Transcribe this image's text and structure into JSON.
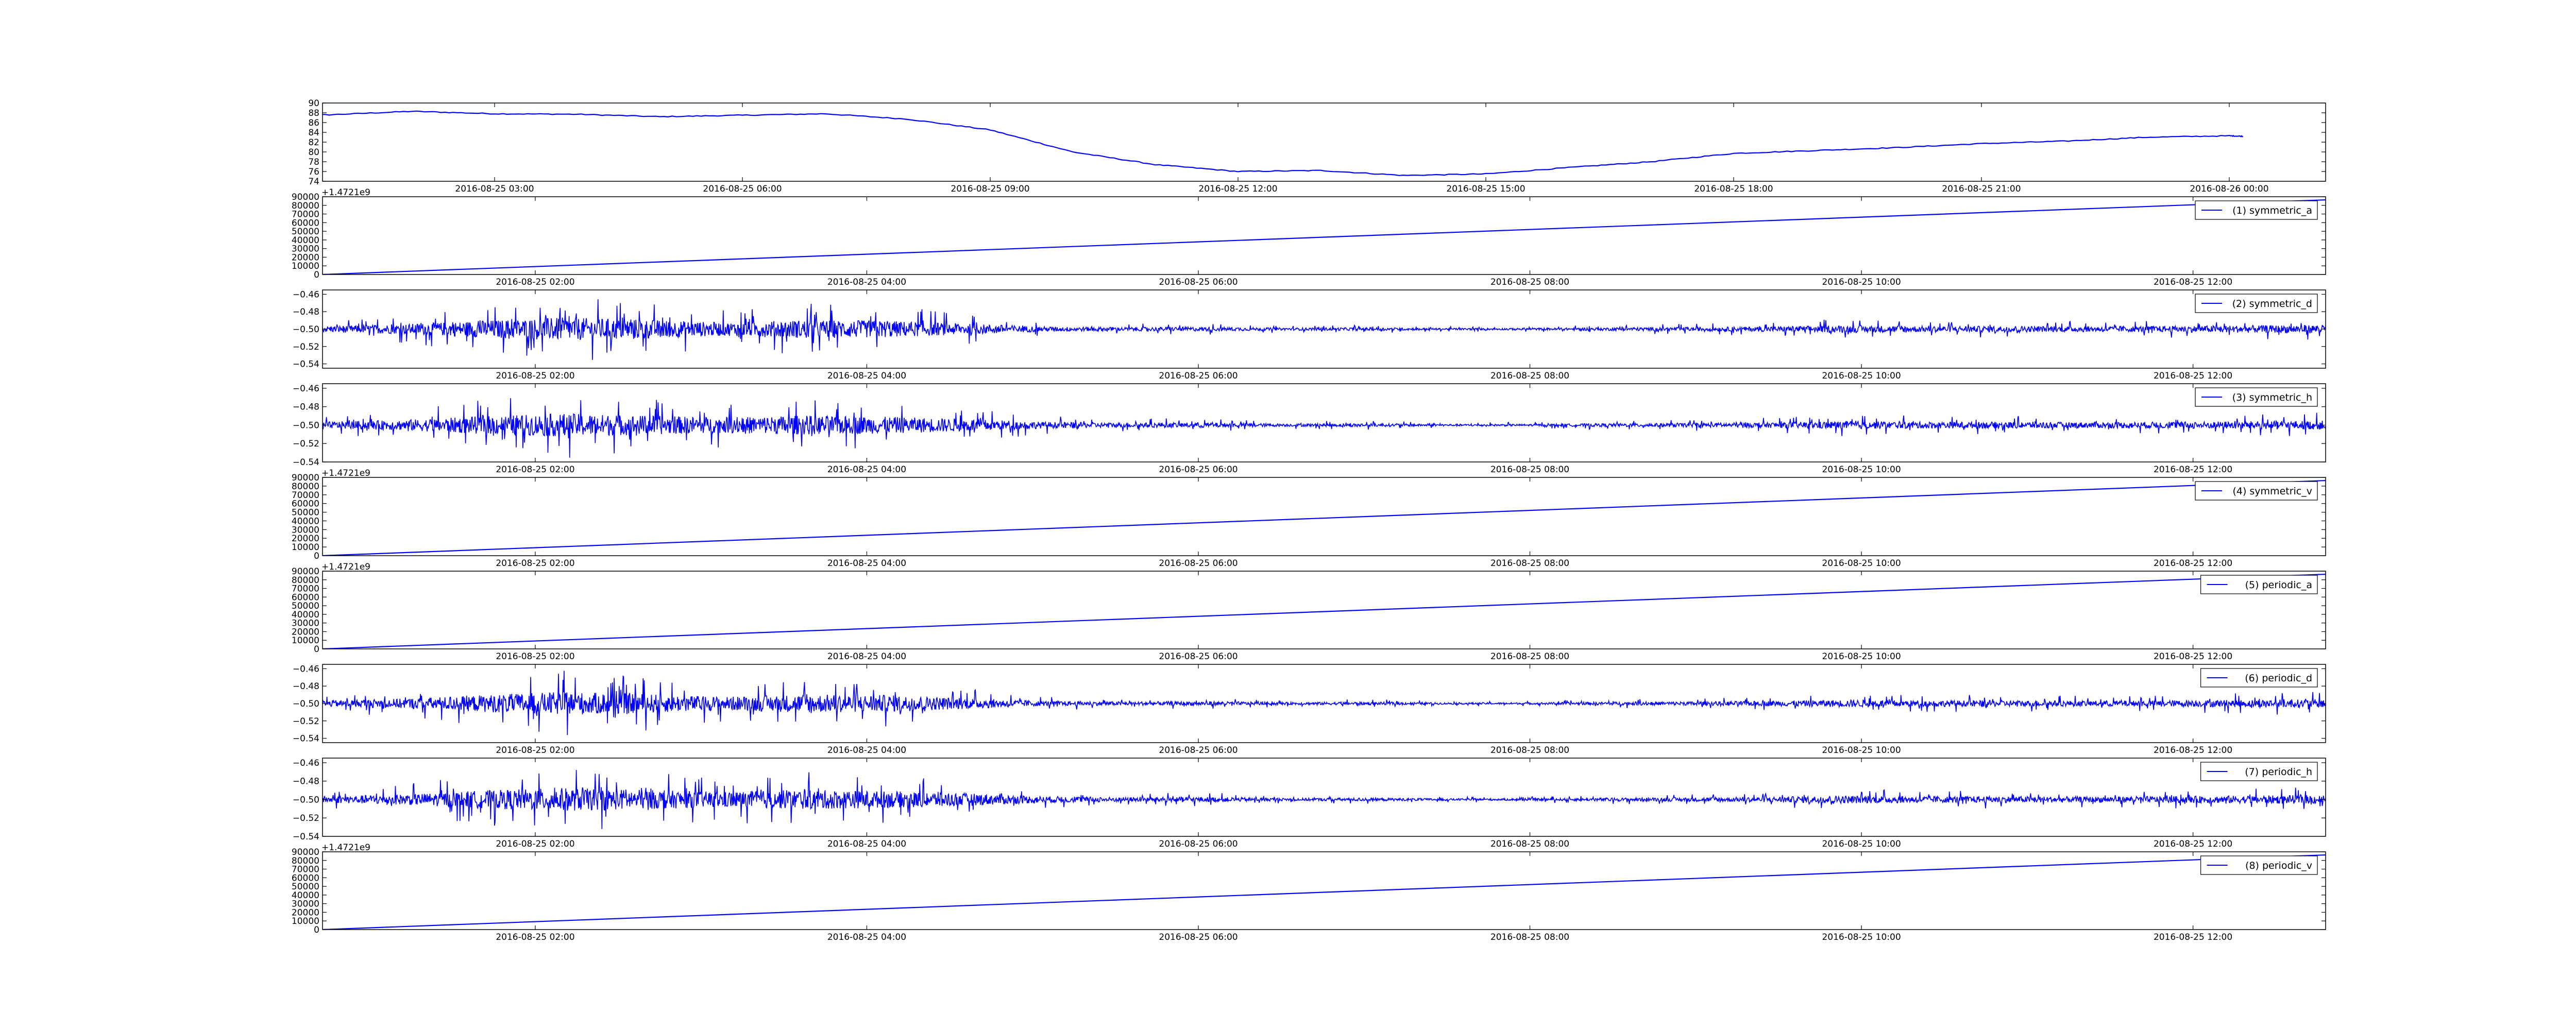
{
  "chart_data": [
    {
      "type": "line",
      "color": "#0000ff",
      "ylim": [
        74,
        90
      ],
      "yticks": [
        "90",
        "88",
        "86",
        "84",
        "82",
        "80",
        "78",
        "76",
        "74"
      ],
      "xticks": [
        "2016-08-25 03:00",
        "2016-08-25 06:00",
        "2016-08-25 09:00",
        "2016-08-25 12:00",
        "2016-08-25 15:00",
        "2016-08-25 18:00",
        "2016-08-25 21:00",
        "2016-08-26 00:00"
      ],
      "x": [
        "2016-08-25 00:00",
        "2016-08-25 01:00",
        "2016-08-25 02:00",
        "2016-08-25 03:00",
        "2016-08-25 04:00",
        "2016-08-25 05:00",
        "2016-08-25 06:00",
        "2016-08-25 07:00",
        "2016-08-25 08:00",
        "2016-08-25 09:00",
        "2016-08-25 10:00",
        "2016-08-25 11:00",
        "2016-08-25 12:00",
        "2016-08-25 13:00",
        "2016-08-25 14:00",
        "2016-08-25 15:00",
        "2016-08-25 16:00",
        "2016-08-25 17:00",
        "2016-08-25 18:00",
        "2016-08-25 19:00",
        "2016-08-25 20:00",
        "2016-08-25 21:00",
        "2016-08-25 22:00",
        "2016-08-25 23:00",
        "2016-08-26 00:00",
        "2016-08-26 00:10"
      ],
      "values": [
        87.5,
        87.6,
        88.3,
        87.8,
        87.7,
        87.2,
        87.5,
        87.8,
        86.7,
        84.5,
        80.0,
        77.4,
        76.0,
        76.2,
        75.2,
        75.5,
        76.8,
        78.0,
        79.7,
        80.3,
        80.9,
        81.7,
        82.2,
        83.0,
        83.3,
        83.2
      ]
    },
    {
      "type": "line",
      "color": "#0000ff",
      "legend": "(1) symmetric_a",
      "offset_text": "+1.4721e9",
      "ylim": [
        0,
        90000
      ],
      "yticks": [
        "90000",
        "80000",
        "70000",
        "60000",
        "50000",
        "40000",
        "30000",
        "20000",
        "10000",
        "0"
      ],
      "xticks": [
        "2016-08-25 02:00",
        "2016-08-25 04:00",
        "2016-08-25 06:00",
        "2016-08-25 08:00",
        "2016-08-25 10:00",
        "2016-08-25 12:00"
      ],
      "x": [
        "2016-08-25 00:43",
        "2016-08-25 12:48"
      ],
      "values": [
        0,
        86400
      ]
    },
    {
      "type": "line",
      "color": "#0000ff",
      "legend": "(2) symmetric_d",
      "ylim": [
        -0.545,
        -0.455
      ],
      "yticks": [
        "-0.46",
        "-0.48",
        "-0.50",
        "-0.52",
        "-0.54"
      ],
      "xticks": [
        "2016-08-25 02:00",
        "2016-08-25 04:00",
        "2016-08-25 06:00",
        "2016-08-25 08:00",
        "2016-08-25 10:00",
        "2016-08-25 12:00"
      ],
      "center": -0.5,
      "envelope_amplitude": [
        0.01,
        0.016,
        0.028,
        0.038,
        0.032,
        0.022,
        0.03,
        0.028,
        0.018,
        0.008,
        0.006,
        0.007,
        0.004,
        0.005,
        0.003,
        0.003,
        0.005,
        0.006,
        0.008,
        0.012,
        0.01,
        0.01,
        0.009,
        0.01,
        0.012,
        0.014
      ]
    },
    {
      "type": "line",
      "color": "#0000ff",
      "legend": "(3) symmetric_h",
      "ylim": [
        -0.54,
        -0.455
      ],
      "yticks": [
        "-0.46",
        "-0.48",
        "-0.50",
        "-0.52",
        "-0.54"
      ],
      "xticks": [
        "2016-08-25 02:00",
        "2016-08-25 04:00",
        "2016-08-25 06:00",
        "2016-08-25 08:00",
        "2016-08-25 10:00",
        "2016-08-25 12:00"
      ],
      "center": -0.5,
      "envelope_amplitude": [
        0.01,
        0.016,
        0.028,
        0.036,
        0.03,
        0.024,
        0.03,
        0.026,
        0.02,
        0.01,
        0.007,
        0.008,
        0.004,
        0.005,
        0.003,
        0.003,
        0.005,
        0.006,
        0.008,
        0.012,
        0.01,
        0.01,
        0.009,
        0.01,
        0.012,
        0.014
      ]
    },
    {
      "type": "line",
      "color": "#0000ff",
      "legend": "(4) symmetric_v",
      "offset_text": "+1.4721e9",
      "ylim": [
        0,
        90000
      ],
      "yticks": [
        "90000",
        "80000",
        "70000",
        "60000",
        "50000",
        "40000",
        "30000",
        "20000",
        "10000",
        "0"
      ],
      "xticks": [
        "2016-08-25 02:00",
        "2016-08-25 04:00",
        "2016-08-25 06:00",
        "2016-08-25 08:00",
        "2016-08-25 10:00",
        "2016-08-25 12:00"
      ],
      "x": [
        "2016-08-25 00:43",
        "2016-08-25 12:48"
      ],
      "values": [
        0,
        86400
      ]
    },
    {
      "type": "line",
      "color": "#0000ff",
      "legend": "(5) periodic_a",
      "offset_text": "+1.4721e9",
      "ylim": [
        0,
        90000
      ],
      "yticks": [
        "90000",
        "80000",
        "70000",
        "60000",
        "50000",
        "40000",
        "30000",
        "20000",
        "10000",
        "0"
      ],
      "xticks": [
        "2016-08-25 02:00",
        "2016-08-25 04:00",
        "2016-08-25 06:00",
        "2016-08-25 08:00",
        "2016-08-25 10:00",
        "2016-08-25 12:00"
      ],
      "x": [
        "2016-08-25 00:43",
        "2016-08-25 12:48"
      ],
      "values": [
        0,
        86400
      ]
    },
    {
      "type": "line",
      "color": "#0000ff",
      "legend": "(6) periodic_d",
      "ylim": [
        -0.545,
        -0.455
      ],
      "yticks": [
        "-0.46",
        "-0.48",
        "-0.50",
        "-0.52",
        "-0.54"
      ],
      "xticks": [
        "2016-08-25 02:00",
        "2016-08-25 04:00",
        "2016-08-25 06:00",
        "2016-08-25 08:00",
        "2016-08-25 10:00",
        "2016-08-25 12:00"
      ],
      "center": -0.5,
      "envelope_amplitude": [
        0.01,
        0.016,
        0.028,
        0.038,
        0.032,
        0.022,
        0.03,
        0.028,
        0.018,
        0.008,
        0.006,
        0.007,
        0.004,
        0.005,
        0.003,
        0.003,
        0.005,
        0.006,
        0.008,
        0.012,
        0.01,
        0.01,
        0.009,
        0.01,
        0.012,
        0.014
      ]
    },
    {
      "type": "line",
      "color": "#0000ff",
      "legend": "(7) periodic_h",
      "ylim": [
        -0.54,
        -0.455
      ],
      "yticks": [
        "-0.46",
        "-0.48",
        "-0.50",
        "-0.52",
        "-0.54"
      ],
      "xticks": [
        "2016-08-25 02:00",
        "2016-08-25 04:00",
        "2016-08-25 06:00",
        "2016-08-25 08:00",
        "2016-08-25 10:00",
        "2016-08-25 12:00"
      ],
      "center": -0.5,
      "envelope_amplitude": [
        0.01,
        0.016,
        0.028,
        0.036,
        0.03,
        0.024,
        0.03,
        0.026,
        0.02,
        0.01,
        0.007,
        0.008,
        0.004,
        0.005,
        0.003,
        0.003,
        0.005,
        0.006,
        0.008,
        0.012,
        0.01,
        0.01,
        0.009,
        0.01,
        0.012,
        0.014
      ]
    },
    {
      "type": "line",
      "color": "#0000ff",
      "legend": "(8) periodic_v",
      "offset_text": "+1.4721e9",
      "ylim": [
        0,
        90000
      ],
      "yticks": [
        "90000",
        "80000",
        "70000",
        "60000",
        "50000",
        "40000",
        "30000",
        "20000",
        "10000",
        "0"
      ],
      "xticks": [
        "2016-08-25 02:00",
        "2016-08-25 04:00",
        "2016-08-25 06:00",
        "2016-08-25 08:00",
        "2016-08-25 10:00",
        "2016-08-25 12:00"
      ],
      "x": [
        "2016-08-25 00:43",
        "2016-08-25 12:48"
      ],
      "values": [
        0,
        86400
      ]
    }
  ]
}
